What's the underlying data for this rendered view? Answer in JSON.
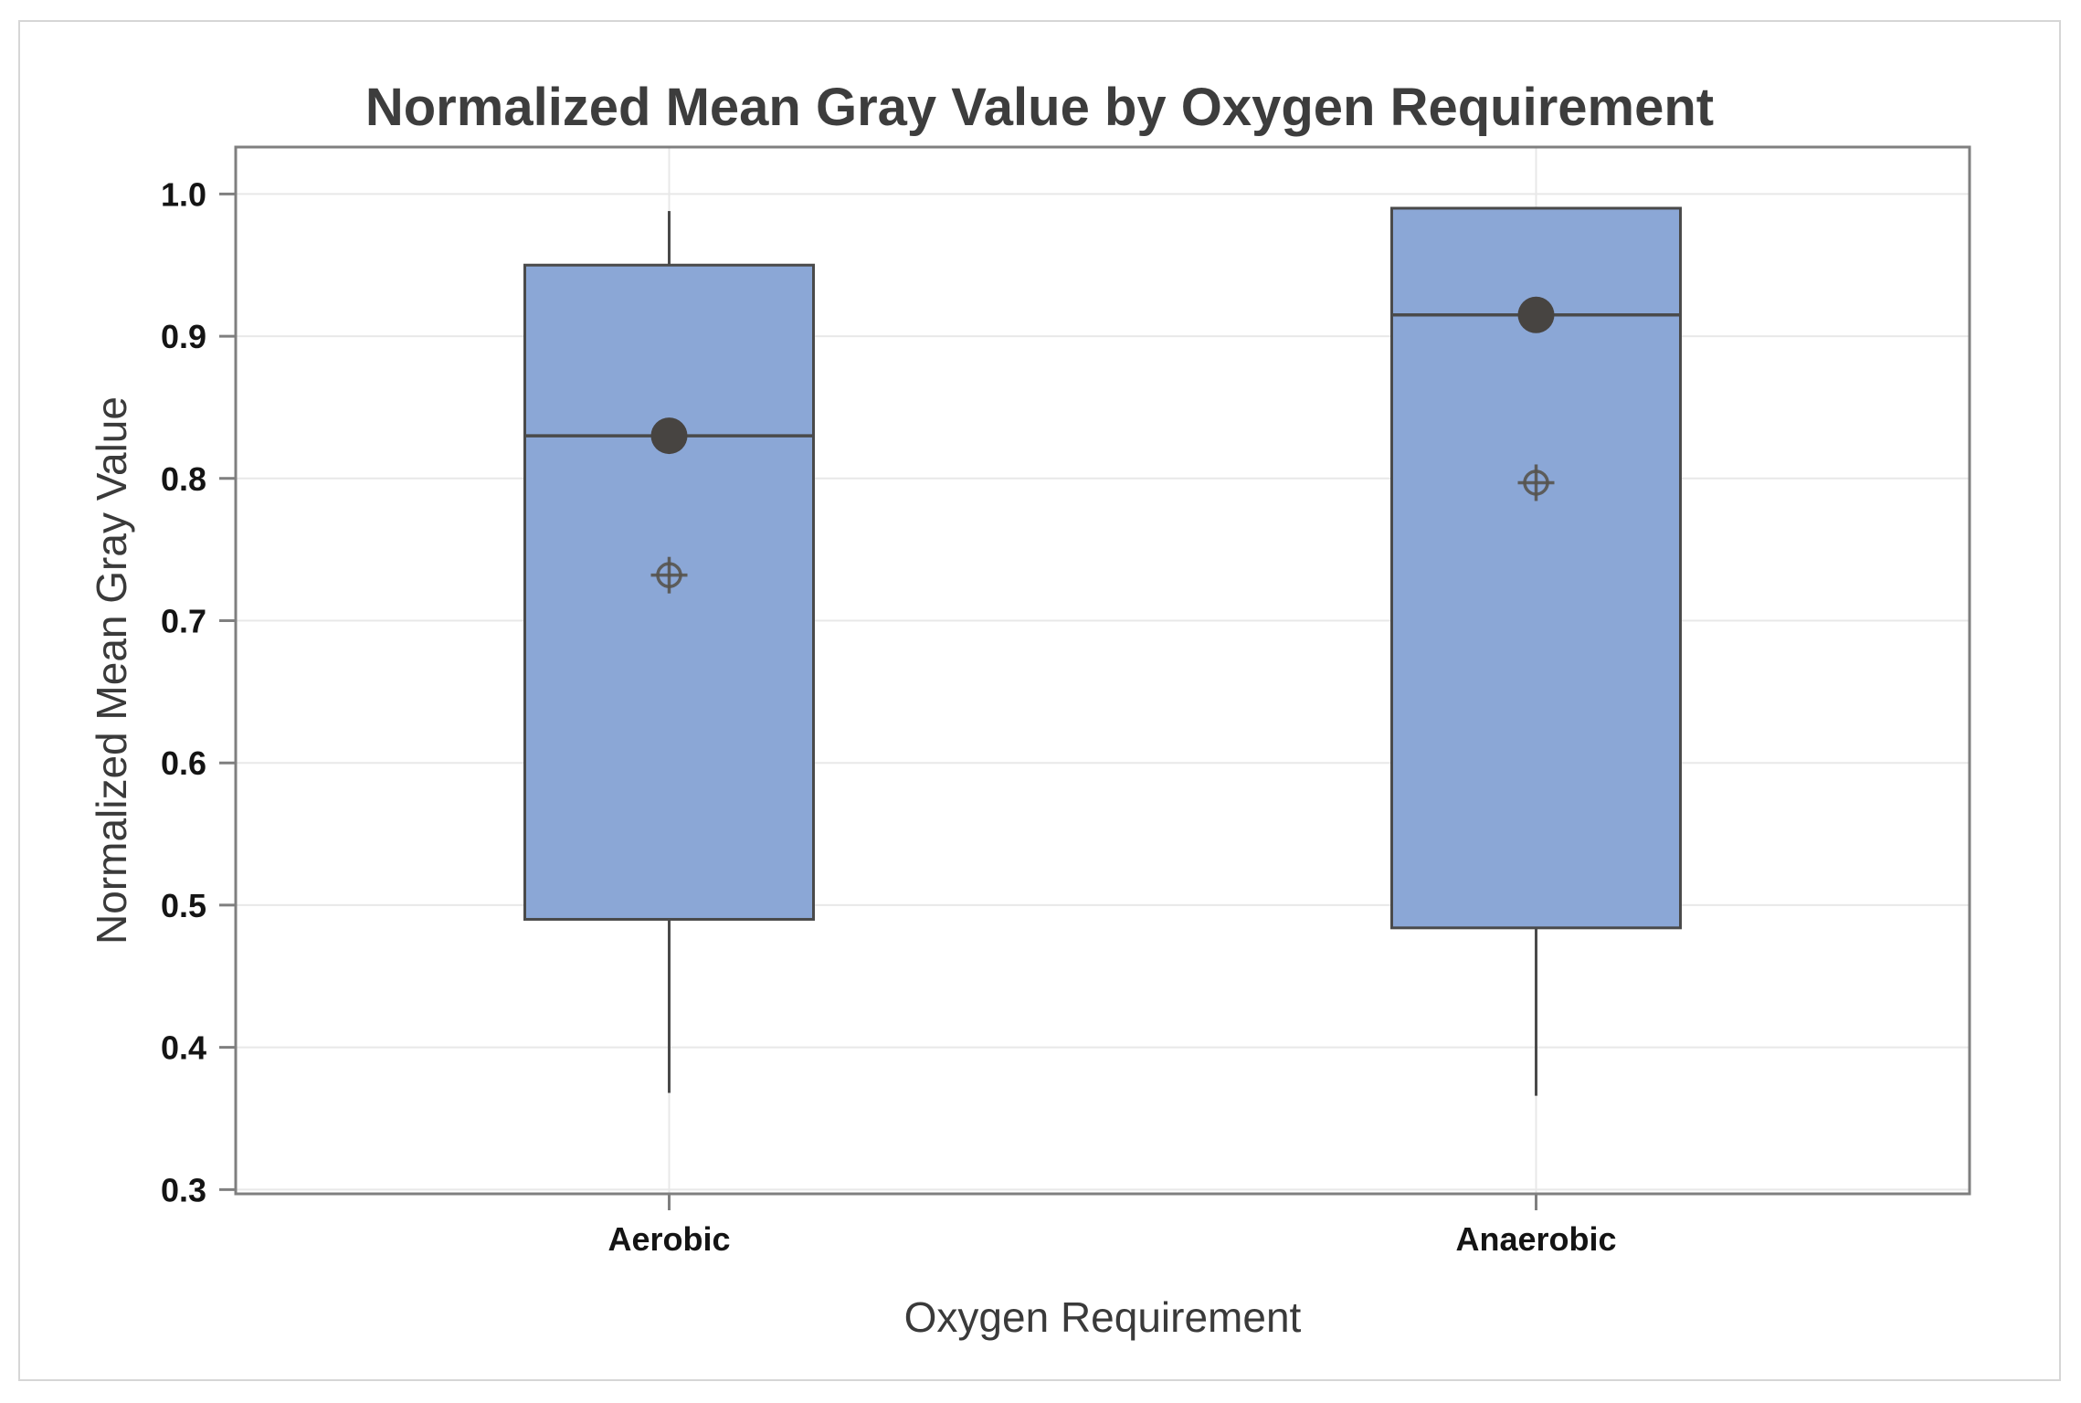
{
  "title": "Normalized Mean Gray Value by Oxygen Requirement",
  "chart_data": {
    "type": "box",
    "title": "Normalized Mean Gray Value by Oxygen Requirement",
    "xlabel": "Oxygen Requirement",
    "ylabel": "Normalized Mean Gray Value",
    "categories": [
      "Aerobic",
      "Anaerobic"
    ],
    "y_ticks": [
      1.0,
      0.9,
      0.8,
      0.7,
      0.6,
      0.5,
      0.4,
      0.3
    ],
    "ylim": [
      0.297,
      1.033
    ],
    "grid": "horizontal gridlines at each tick plus one vertical gridline per category; legend none",
    "series": [
      {
        "name": "Aerobic",
        "whisker_low": 0.368,
        "q1": 0.49,
        "median": 0.83,
        "q3": 0.95,
        "whisker_high": 0.988,
        "mean": 0.83,
        "crosshair_point": 0.732
      },
      {
        "name": "Anaerobic",
        "whisker_low": 0.366,
        "q1": 0.484,
        "median": 0.915,
        "q3": 0.99,
        "whisker_high": null,
        "mean": 0.915,
        "crosshair_point": 0.797
      }
    ],
    "colors": {
      "box_fill": "#8BA7D6",
      "box_stroke": "#4A4A4A",
      "median_line": "#4A4A4A",
      "whisker": "#4A4A4A",
      "mean_marker": "#474441",
      "crosshair_marker": "#57544E",
      "gridline": "#E8E8E8",
      "plot_border": "#7F7F7F",
      "axis_tick": "#7F7F7F",
      "card_border": "#D6D6D6",
      "title_text": "#3D3D3D",
      "tick_text": "#141414",
      "axis_title_text": "#3A3A3A"
    }
  }
}
